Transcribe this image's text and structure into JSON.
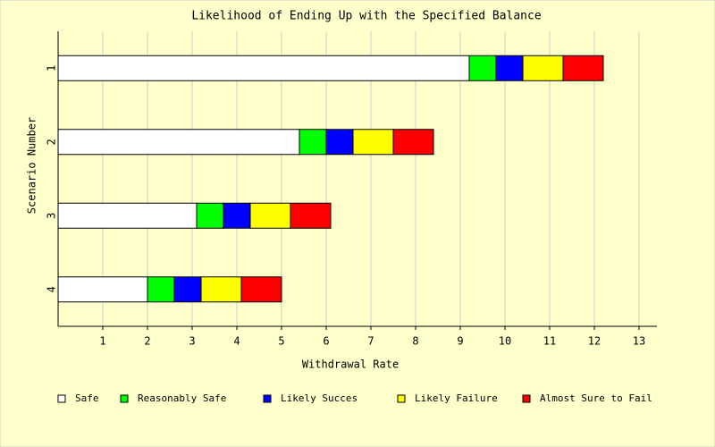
{
  "chart_data": {
    "type": "hbar-stacked",
    "title": "Likelihood of Ending Up with the Specified Balance",
    "x_label": "Withdrawal Rate",
    "y_label": "Scenario Number",
    "categories": [
      "1",
      "2",
      "3",
      "4"
    ],
    "series": [
      {
        "name": "Safe",
        "color": "#ffffff",
        "values": [
          9.2,
          5.4,
          3.1,
          2.0
        ]
      },
      {
        "name": "Reasonably Safe",
        "color": "#00ff00",
        "values": [
          0.6,
          0.6,
          0.6,
          0.6
        ]
      },
      {
        "name": "Likely Succes",
        "color": "#0000ff",
        "values": [
          0.6,
          0.6,
          0.6,
          0.6
        ]
      },
      {
        "name": "Likely Failure",
        "color": "#ffff00",
        "values": [
          0.9,
          0.9,
          0.9,
          0.9
        ]
      },
      {
        "name": "Almost Sure to Fail",
        "color": "#ff0000",
        "values": [
          0.9,
          0.9,
          0.9,
          0.9
        ]
      }
    ],
    "xlim": [
      0,
      13.4
    ],
    "xticks": [
      1,
      2,
      3,
      4,
      5,
      6,
      7,
      8,
      9,
      10,
      11,
      12,
      13
    ],
    "grid": true
  }
}
